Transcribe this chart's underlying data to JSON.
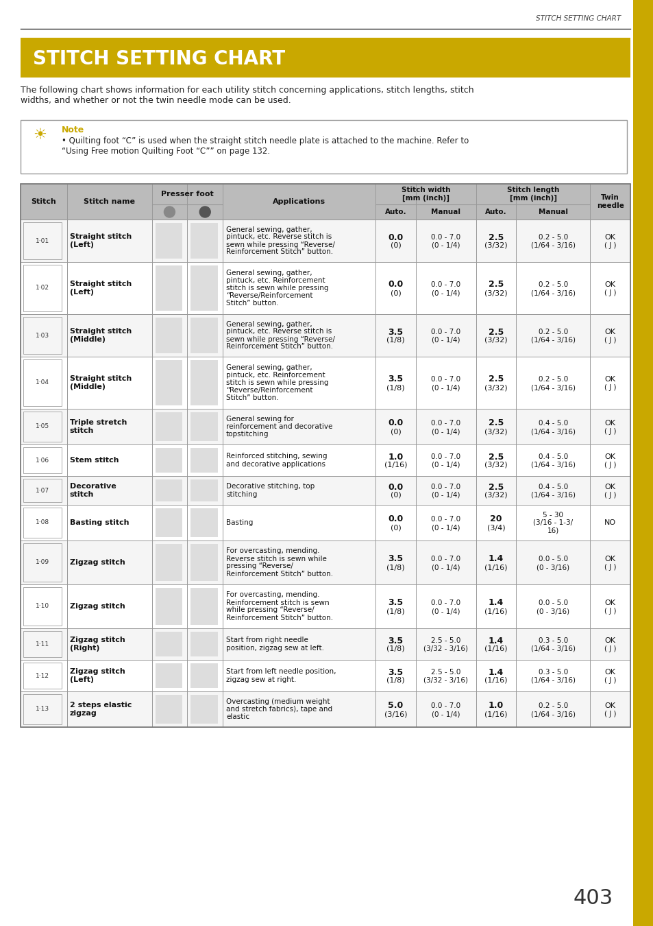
{
  "page_header": "STITCH SETTING CHART",
  "title": "STITCH SETTING CHART",
  "title_bg": "#C9A800",
  "title_color": "#FFFFFF",
  "intro_text": "The following chart shows information for each utility stitch concerning applications, stitch lengths, stitch\nwidths, and whether or not the twin needle mode can be used.",
  "note_title": "Note",
  "note_text": "Quilting foot “C” is used when the straight stitch needle plate is attached to the machine. Refer to\n“Using Free motion Quilting Foot “C”” on page 132.",
  "header_bg": "#BBBBBB",
  "row_bg_alt": "#F5F5F5",
  "row_bg": "#FFFFFF",
  "border_color": "#999999",
  "gold_bar": "#C9A800",
  "page_number": "403",
  "rows": [
    {
      "id": "1·01",
      "name": "Straight stitch\n(Left)",
      "application": "General sewing, gather,\npintuck, etc. Reverse stitch is\nsewn while pressing “Reverse/\nReinforcement Stitch” button.",
      "width_auto": "0.0\n(0)",
      "width_manual": "0.0 - 7.0\n(0 - 1/4)",
      "length_auto": "2.5\n(3/32)",
      "length_manual": "0.2 - 5.0\n(1/64 - 3/16)",
      "twin": "OK\n( J )"
    },
    {
      "id": "1·02",
      "name": "Straight stitch\n(Left)",
      "application": "General sewing, gather,\npintuck, etc. Reinforcement\nstitch is sewn while pressing\n“Reverse/Reinforcement\nStitch” button.",
      "width_auto": "0.0\n(0)",
      "width_manual": "0.0 - 7.0\n(0 - 1/4)",
      "length_auto": "2.5\n(3/32)",
      "length_manual": "0.2 - 5.0\n(1/64 - 3/16)",
      "twin": "OK\n( J )"
    },
    {
      "id": "1·03",
      "name": "Straight stitch\n(Middle)",
      "application": "General sewing, gather,\npintuck, etc. Reverse stitch is\nsewn while pressing “Reverse/\nReinforcement Stitch” button.",
      "width_auto": "3.5\n(1/8)",
      "width_manual": "0.0 - 7.0\n(0 - 1/4)",
      "length_auto": "2.5\n(3/32)",
      "length_manual": "0.2 - 5.0\n(1/64 - 3/16)",
      "twin": "OK\n( J )"
    },
    {
      "id": "1·04",
      "name": "Straight stitch\n(Middle)",
      "application": "General sewing, gather,\npintuck, etc. Reinforcement\nstitch is sewn while pressing\n“Reverse/Reinforcement\nStitch” button.",
      "width_auto": "3.5\n(1/8)",
      "width_manual": "0.0 - 7.0\n(0 - 1/4)",
      "length_auto": "2.5\n(3/32)",
      "length_manual": "0.2 - 5.0\n(1/64 - 3/16)",
      "twin": "OK\n( J )"
    },
    {
      "id": "1·05",
      "name": "Triple stretch\nstitch",
      "application": "General sewing for\nreinforcement and decorative\ntopstitching",
      "width_auto": "0.0\n(0)",
      "width_manual": "0.0 - 7.0\n(0 - 1/4)",
      "length_auto": "2.5\n(3/32)",
      "length_manual": "0.4 - 5.0\n(1/64 - 3/16)",
      "twin": "OK\n( J )"
    },
    {
      "id": "1·06",
      "name": "Stem stitch",
      "application": "Reinforced stitching, sewing\nand decorative applications",
      "width_auto": "1.0\n(1/16)",
      "width_manual": "0.0 - 7.0\n(0 - 1/4)",
      "length_auto": "2.5\n(3/32)",
      "length_manual": "0.4 - 5.0\n(1/64 - 3/16)",
      "twin": "OK\n( J )"
    },
    {
      "id": "1·07",
      "name": "Decorative\nstitch",
      "application": "Decorative stitching, top\nstitching",
      "width_auto": "0.0\n(0)",
      "width_manual": "0.0 - 7.0\n(0 - 1/4)",
      "length_auto": "2.5\n(3/32)",
      "length_manual": "0.4 - 5.0\n(1/64 - 3/16)",
      "twin": "OK\n( J )"
    },
    {
      "id": "1·08",
      "name": "Basting stitch",
      "application": "Basting",
      "width_auto": "0.0\n(0)",
      "width_manual": "0.0 - 7.0\n(0 - 1/4)",
      "length_auto": "20\n(3/4)",
      "length_manual": "5 - 30\n(3/16 - 1-3/\n16)",
      "twin": "NO"
    },
    {
      "id": "1·09",
      "name": "Zigzag stitch",
      "application": "For overcasting, mending.\nReverse stitch is sewn while\npressing “Reverse/\nReinforcement Stitch” button.",
      "width_auto": "3.5\n(1/8)",
      "width_manual": "0.0 - 7.0\n(0 - 1/4)",
      "length_auto": "1.4\n(1/16)",
      "length_manual": "0.0 - 5.0\n(0 - 3/16)",
      "twin": "OK\n( J )"
    },
    {
      "id": "1·10",
      "name": "Zigzag stitch",
      "application": "For overcasting, mending.\nReinforcement stitch is sewn\nwhile pressing “Reverse/\nReinforcement Stitch” button.",
      "width_auto": "3.5\n(1/8)",
      "width_manual": "0.0 - 7.0\n(0 - 1/4)",
      "length_auto": "1.4\n(1/16)",
      "length_manual": "0.0 - 5.0\n(0 - 3/16)",
      "twin": "OK\n( J )"
    },
    {
      "id": "1·11",
      "name": "Zigzag stitch\n(Right)",
      "application": "Start from right needle\nposition, zigzag sew at left.",
      "width_auto": "3.5\n(1/8)",
      "width_manual": "2.5 - 5.0\n(3/32 - 3/16)",
      "length_auto": "1.4\n(1/16)",
      "length_manual": "0.3 - 5.0\n(1/64 - 3/16)",
      "twin": "OK\n( J )"
    },
    {
      "id": "1·12",
      "name": "Zigzag stitch\n(Left)",
      "application": "Start from left needle position,\nzigzag sew at right.",
      "width_auto": "3.5\n(1/8)",
      "width_manual": "2.5 - 5.0\n(3/32 - 3/16)",
      "length_auto": "1.4\n(1/16)",
      "length_manual": "0.3 - 5.0\n(1/64 - 3/16)",
      "twin": "OK\n( J )"
    },
    {
      "id": "1·13",
      "name": "2 steps elastic\nzigzag",
      "application": "Overcasting (medium weight\nand stretch fabrics), tape and\nelastic",
      "width_auto": "5.0\n(3/16)",
      "width_manual": "0.0 - 7.0\n(0 - 1/4)",
      "length_auto": "1.0\n(1/16)",
      "length_manual": "0.2 - 5.0\n(1/64 - 3/16)",
      "twin": "OK\n( J )"
    }
  ]
}
